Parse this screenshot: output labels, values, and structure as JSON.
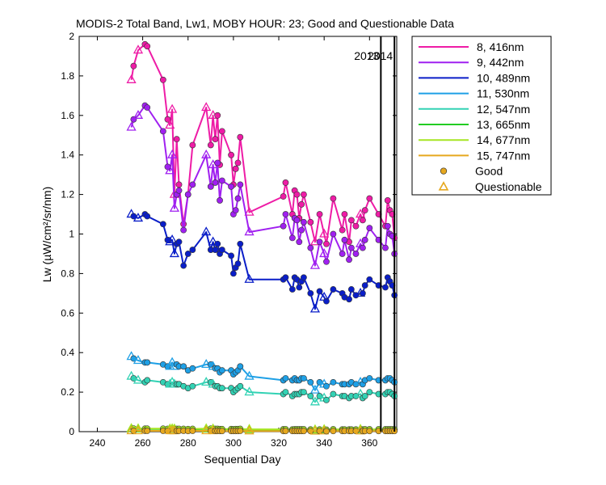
{
  "chart_data": {
    "type": "line",
    "title": "MODIS-2 Total Band,  Lw1, MOBY HOUR: 23;  Good and Questionable Data",
    "xlabel": "Sequential Day",
    "ylabel": "Lw (µW/cm²/sr/nm)",
    "xlim": [
      232,
      372
    ],
    "ylim": [
      0,
      2
    ],
    "xticks": [
      240,
      260,
      280,
      300,
      320,
      340,
      360
    ],
    "yticks": [
      0,
      0.2,
      0.4,
      0.6,
      0.8,
      1,
      1.2,
      1.4,
      1.6,
      1.8,
      2
    ],
    "grid": false,
    "legend_position": "outside-right-top",
    "year_markers": [
      {
        "label": "2013",
        "x": 365
      },
      {
        "label": "2014",
        "x": 371
      }
    ],
    "x": [
      255,
      256,
      258,
      261,
      262,
      269,
      271,
      272,
      273,
      274,
      275,
      276,
      278,
      280,
      282,
      288,
      290,
      291,
      292,
      293,
      294,
      295,
      299,
      300,
      301,
      302,
      303,
      307,
      322,
      323,
      326,
      327,
      328,
      329,
      330,
      331,
      334,
      336,
      338,
      340,
      341,
      344,
      348,
      349,
      351,
      352,
      354,
      356,
      357,
      358,
      360,
      364,
      367,
      368,
      369,
      370,
      371
    ],
    "series": [
      {
        "name": "8, 416nm",
        "color": "#ee1ca6",
        "values": [
          1.78,
          1.85,
          1.93,
          1.96,
          1.95,
          1.78,
          1.58,
          1.55,
          1.63,
          1.2,
          1.48,
          1.25,
          1.05,
          1.2,
          1.45,
          1.64,
          1.45,
          1.6,
          1.48,
          1.6,
          1.35,
          1.52,
          1.4,
          1.25,
          1.33,
          1.36,
          1.49,
          1.11,
          1.19,
          1.26,
          1.1,
          1.22,
          1.2,
          1.08,
          1.15,
          1.2,
          1.06,
          0.96,
          1.1,
          1.0,
          0.95,
          1.18,
          1.02,
          1.1,
          0.96,
          1.07,
          1.04,
          1.1,
          1.07,
          1.12,
          1.18,
          1.1,
          1.04,
          1.17,
          1.12,
          1.1,
          0.98
        ]
      },
      {
        "name": "9, 442nm",
        "color": "#a020f0",
        "values": [
          1.54,
          1.58,
          1.6,
          1.65,
          1.64,
          1.52,
          1.34,
          1.32,
          1.4,
          1.13,
          1.2,
          1.22,
          1.02,
          1.2,
          1.25,
          1.4,
          1.24,
          1.35,
          1.26,
          1.36,
          1.17,
          1.27,
          1.24,
          1.1,
          1.12,
          1.18,
          1.25,
          1.01,
          1.04,
          1.1,
          0.98,
          1.08,
          1.07,
          0.96,
          1.02,
          1.06,
          0.93,
          0.84,
          0.96,
          0.9,
          0.86,
          1.0,
          0.9,
          0.97,
          0.87,
          0.93,
          0.9,
          0.95,
          0.93,
          0.97,
          1.03,
          0.97,
          0.93,
          1.04,
          1.0,
          0.99,
          0.9
        ]
      },
      {
        "name": "10, 489nm",
        "color": "#0a1ec8",
        "values": [
          1.1,
          1.09,
          1.08,
          1.1,
          1.09,
          1.05,
          0.97,
          0.96,
          0.97,
          0.9,
          0.95,
          0.96,
          0.84,
          0.9,
          0.92,
          1.01,
          0.92,
          0.96,
          0.92,
          0.95,
          0.9,
          0.92,
          0.89,
          0.8,
          0.83,
          0.85,
          0.95,
          0.77,
          0.77,
          0.78,
          0.72,
          0.78,
          0.77,
          0.73,
          0.76,
          0.78,
          0.7,
          0.62,
          0.71,
          0.68,
          0.66,
          0.72,
          0.7,
          0.68,
          0.67,
          0.72,
          0.69,
          0.7,
          0.7,
          0.74,
          0.77,
          0.74,
          0.73,
          0.78,
          0.76,
          0.74,
          0.69
        ]
      },
      {
        "name": "11, 530nm",
        "color": "#1ea0e6",
        "values": [
          0.38,
          0.37,
          0.36,
          0.35,
          0.35,
          0.34,
          0.33,
          0.33,
          0.35,
          0.33,
          0.34,
          0.33,
          0.33,
          0.31,
          0.32,
          0.34,
          0.34,
          0.33,
          0.32,
          0.32,
          0.3,
          0.31,
          0.31,
          0.29,
          0.3,
          0.31,
          0.33,
          0.28,
          0.26,
          0.27,
          0.26,
          0.27,
          0.26,
          0.26,
          0.27,
          0.27,
          0.25,
          0.21,
          0.25,
          0.24,
          0.23,
          0.25,
          0.24,
          0.24,
          0.24,
          0.25,
          0.24,
          0.25,
          0.24,
          0.26,
          0.27,
          0.26,
          0.26,
          0.27,
          0.27,
          0.26,
          0.25
        ]
      },
      {
        "name": "12, 547nm",
        "color": "#32d2b4",
        "values": [
          0.28,
          0.27,
          0.26,
          0.25,
          0.26,
          0.25,
          0.24,
          0.24,
          0.25,
          0.24,
          0.24,
          0.24,
          0.23,
          0.22,
          0.23,
          0.25,
          0.25,
          0.24,
          0.23,
          0.23,
          0.22,
          0.22,
          0.22,
          0.2,
          0.21,
          0.22,
          0.23,
          0.2,
          0.19,
          0.2,
          0.18,
          0.19,
          0.19,
          0.19,
          0.2,
          0.2,
          0.18,
          0.15,
          0.18,
          0.17,
          0.16,
          0.19,
          0.18,
          0.18,
          0.17,
          0.18,
          0.18,
          0.19,
          0.17,
          0.18,
          0.2,
          0.19,
          0.19,
          0.2,
          0.2,
          0.19,
          0.18
        ]
      },
      {
        "name": "13, 665nm",
        "color": "#22cc22",
        "values": [
          0.014,
          0.014,
          0.013,
          0.013,
          0.013,
          0.013,
          0.012,
          0.012,
          0.013,
          0.012,
          0.012,
          0.012,
          0.012,
          0.011,
          0.012,
          0.013,
          0.013,
          0.012,
          0.012,
          0.012,
          0.011,
          0.011,
          0.011,
          0.01,
          0.011,
          0.011,
          0.012,
          0.01,
          0.01,
          0.01,
          0.009,
          0.01,
          0.01,
          0.01,
          0.01,
          0.01,
          0.009,
          0.008,
          0.009,
          0.009,
          0.008,
          0.01,
          0.009,
          0.009,
          0.009,
          0.009,
          0.009,
          0.01,
          0.009,
          0.01,
          0.01,
          0.01,
          0.01,
          0.01,
          0.01,
          0.01,
          0.009
        ]
      },
      {
        "name": "14, 677nm",
        "color": "#a6e622",
        "values": [
          0.016,
          0.016,
          0.015,
          0.015,
          0.015,
          0.015,
          0.014,
          0.014,
          0.015,
          0.014,
          0.014,
          0.014,
          0.014,
          0.013,
          0.014,
          0.015,
          0.015,
          0.014,
          0.014,
          0.014,
          0.013,
          0.013,
          0.013,
          0.012,
          0.013,
          0.013,
          0.014,
          0.012,
          0.012,
          0.012,
          0.011,
          0.012,
          0.012,
          0.012,
          0.012,
          0.012,
          0.011,
          0.01,
          0.011,
          0.011,
          0.01,
          0.012,
          0.011,
          0.011,
          0.011,
          0.011,
          0.011,
          0.012,
          0.011,
          0.012,
          0.012,
          0.012,
          0.012,
          0.012,
          0.012,
          0.012,
          0.011
        ]
      },
      {
        "name": "15, 747nm",
        "color": "#e6a81e",
        "values": [
          0.004,
          0.004,
          0.004,
          0.004,
          0.004,
          0.004,
          0.004,
          0.004,
          0.004,
          0.004,
          0.004,
          0.004,
          0.004,
          0.003,
          0.004,
          0.004,
          0.004,
          0.004,
          0.004,
          0.004,
          0.003,
          0.003,
          0.003,
          0.003,
          0.003,
          0.003,
          0.004,
          0.003,
          0.003,
          0.003,
          0.003,
          0.003,
          0.003,
          0.003,
          0.003,
          0.003,
          0.003,
          0.002,
          0.003,
          0.003,
          0.002,
          0.003,
          0.003,
          0.003,
          0.003,
          0.003,
          0.003,
          0.003,
          0.003,
          0.003,
          0.003,
          0.003,
          0.003,
          0.003,
          0.003,
          0.003,
          0.003
        ]
      }
    ],
    "quality": [
      "Q",
      "G",
      "Q",
      "G",
      "G",
      "G",
      "G",
      "Q",
      "Q",
      "Q",
      "G",
      "G",
      "G",
      "G",
      "G",
      "Q",
      "G",
      "Q",
      "G",
      "G",
      "G",
      "G",
      "G",
      "G",
      "G",
      "G",
      "G",
      "Q",
      "G",
      "G",
      "G",
      "G",
      "G",
      "G",
      "G",
      "G",
      "G",
      "Q",
      "G",
      "Q",
      "G",
      "G",
      "G",
      "G",
      "G",
      "G",
      "G",
      "Q",
      "G",
      "G",
      "G",
      "G",
      "G",
      "G",
      "G",
      "G",
      "G"
    ],
    "legend_markers": [
      {
        "label": "Good",
        "color": "#e6a81e",
        "marker": "circle"
      },
      {
        "label": "Questionable",
        "color": "#e6a81e",
        "marker": "triangle"
      }
    ]
  }
}
